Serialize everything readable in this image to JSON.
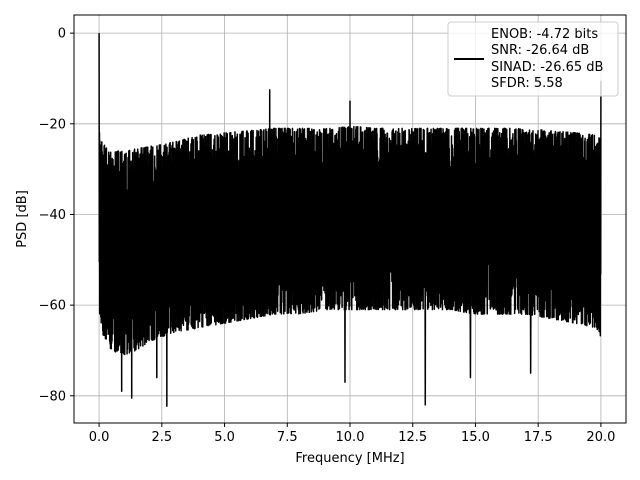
{
  "chart_data": {
    "type": "line",
    "xlabel": "Frequency [MHz]",
    "ylabel": "PSD [dB]",
    "xlim": [
      -1.0,
      21.0
    ],
    "ylim": [
      -86.0,
      4.0
    ],
    "xticks": [
      0.0,
      2.5,
      5.0,
      7.5,
      10.0,
      12.5,
      15.0,
      17.5,
      20.0
    ],
    "xtick_labels": [
      "0.0",
      "2.5",
      "5.0",
      "7.5",
      "10.0",
      "12.5",
      "15.0",
      "17.5",
      "20.0"
    ],
    "yticks": [
      0,
      -20,
      -40,
      -60,
      -80
    ],
    "ytick_labels": [
      "0",
      "−20",
      "−40",
      "−60",
      "−80"
    ],
    "grid": true,
    "legend_position": "top-right",
    "series": [
      {
        "color": "#000000",
        "envelope": {
          "x": [
            0.0,
            0.02,
            0.1,
            0.3,
            0.5,
            1.0,
            1.5,
            2.0,
            2.5,
            3.0,
            4.0,
            5.0,
            6.0,
            7.0,
            8.0,
            9.0,
            10.0,
            11.0,
            12.0,
            13.0,
            14.0,
            15.0,
            16.0,
            17.0,
            18.0,
            19.0,
            19.8,
            20.0
          ],
          "upper": [
            -22,
            -21,
            -23,
            -25,
            -26,
            -26,
            -25.5,
            -25,
            -24.5,
            -24,
            -22.5,
            -22,
            -21.5,
            -21,
            -21,
            -21,
            -20.5,
            -21,
            -21,
            -21,
            -21,
            -21,
            -21,
            -21,
            -21.5,
            -22,
            -22.5,
            -23
          ],
          "lower": [
            -48,
            -62,
            -66,
            -68,
            -70,
            -71,
            -70,
            -68,
            -67,
            -66,
            -65,
            -64,
            -63,
            -62,
            -62,
            -61,
            -61,
            -61,
            -61,
            -61,
            -61,
            -62,
            -62,
            -62,
            -63,
            -64,
            -65,
            -67
          ]
        },
        "peaks": [
          {
            "x": 0.0,
            "y": 0.0
          },
          {
            "x": 6.8,
            "y": -12.5
          },
          {
            "x": 10.0,
            "y": -15.0
          },
          {
            "x": 20.0,
            "y": -10.5
          }
        ],
        "dips": [
          {
            "x": 1.3,
            "y": -80.5
          },
          {
            "x": 2.7,
            "y": -82.3
          },
          {
            "x": 9.8,
            "y": -77.0
          },
          {
            "x": 13.0,
            "y": -82.0
          },
          {
            "x": 0.9,
            "y": -79.0
          },
          {
            "x": 2.3,
            "y": -76.0
          },
          {
            "x": 14.8,
            "y": -76.0
          },
          {
            "x": 17.2,
            "y": -75.0
          }
        ]
      }
    ],
    "legend": {
      "entries": [
        "ENOB: -4.72 bits",
        "SNR: -26.64 dB",
        "SINAD: -26.65 dB",
        "SFDR: 5.58"
      ]
    }
  }
}
